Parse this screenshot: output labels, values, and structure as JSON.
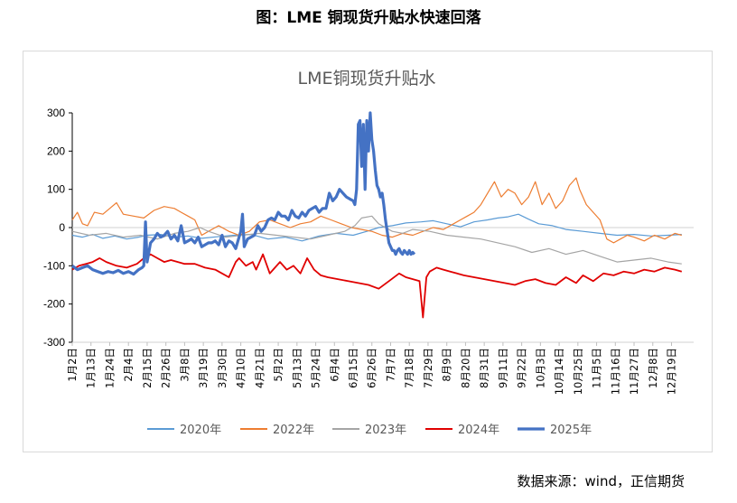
{
  "figure_title": "图：LME 铜现货升贴水快速回落",
  "source": "数据来源：wind，正信期货",
  "chart_data": {
    "type": "line",
    "title": "LME铜现货升贴水",
    "xlabel": "",
    "ylabel": "",
    "ylim": [
      -300,
      300
    ],
    "yticks": [
      -300,
      -200,
      -100,
      0,
      100,
      200,
      300
    ],
    "grid": false,
    "legend_position": "bottom",
    "x_tick_labels": [
      "1月2日",
      "1月13日",
      "1月24日",
      "2月4日",
      "2月15日",
      "2月26日",
      "3月8日",
      "3月19日",
      "3月30日",
      "4月10日",
      "4月21日",
      "5月2日",
      "5月13日",
      "5月24日",
      "6月4日",
      "6月15日",
      "6月26日",
      "7月7日",
      "7月18日",
      "7月29日",
      "8月9日",
      "8月20日",
      "8月31日",
      "9月11日",
      "9月22日",
      "10月3日",
      "10月14日",
      "10月25日",
      "11月5日",
      "11月16日",
      "11月27日",
      "12月8日",
      "12月19日"
    ],
    "x_day_index": [
      0,
      11,
      22,
      33,
      44,
      55,
      66,
      77,
      88,
      99,
      110,
      121,
      132,
      143,
      154,
      165,
      176,
      187,
      198,
      209,
      220,
      231,
      242,
      253,
      264,
      275,
      286,
      297,
      308,
      319,
      330,
      341,
      352
    ],
    "series": [
      {
        "name": "2020年",
        "color": "#5B9BD5",
        "width": 1.2,
        "x": [
          0,
          6,
          12,
          18,
          25,
          32,
          39,
          44,
          52,
          60,
          68,
          76,
          85,
          95,
          105,
          115,
          125,
          135,
          145,
          155,
          165,
          173,
          180,
          188,
          196,
          205,
          212,
          220,
          228,
          236,
          244,
          250,
          256,
          262,
          268,
          274,
          282,
          290,
          300,
          310,
          320,
          330,
          340,
          350,
          358
        ],
        "y": [
          -20,
          -25,
          -18,
          -28,
          -22,
          -30,
          -25,
          -20,
          -18,
          -25,
          -22,
          -28,
          -24,
          -20,
          -18,
          -30,
          -25,
          -35,
          -22,
          -15,
          -20,
          -10,
          0,
          5,
          12,
          15,
          18,
          10,
          2,
          15,
          20,
          25,
          28,
          35,
          22,
          10,
          5,
          -5,
          -10,
          -15,
          -20,
          -18,
          -22,
          -20,
          -18
        ]
      },
      {
        "name": "2022年",
        "color": "#ED7D31",
        "width": 1.2,
        "x": [
          0,
          3,
          6,
          9,
          13,
          18,
          22,
          26,
          30,
          36,
          42,
          48,
          54,
          60,
          64,
          68,
          72,
          76,
          80,
          86,
          92,
          98,
          104,
          110,
          116,
          122,
          128,
          134,
          140,
          146,
          152,
          158,
          164,
          170,
          176,
          182,
          188,
          194,
          200,
          206,
          212,
          218,
          224,
          228,
          232,
          236,
          240,
          244,
          248,
          252,
          256,
          260,
          264,
          268,
          272,
          276,
          280,
          284,
          288,
          292,
          296,
          298,
          302,
          306,
          310,
          314,
          318,
          322,
          326,
          330,
          336,
          342,
          348,
          354,
          358
        ],
        "y": [
          20,
          40,
          10,
          5,
          40,
          35,
          50,
          65,
          35,
          30,
          25,
          45,
          55,
          50,
          40,
          30,
          20,
          -20,
          -10,
          5,
          -10,
          -20,
          -10,
          15,
          20,
          10,
          0,
          10,
          15,
          30,
          20,
          10,
          0,
          -5,
          -10,
          -20,
          -25,
          -15,
          -20,
          -10,
          0,
          -5,
          10,
          20,
          30,
          40,
          60,
          90,
          120,
          80,
          100,
          90,
          60,
          80,
          120,
          60,
          90,
          50,
          70,
          110,
          130,
          100,
          60,
          40,
          20,
          -30,
          -40,
          -30,
          -20,
          -25,
          -35,
          -20,
          -30,
          -15,
          -20
        ]
      },
      {
        "name": "2023年",
        "color": "#A5A5A5",
        "width": 1.2,
        "x": [
          0,
          10,
          20,
          30,
          40,
          50,
          60,
          68,
          75,
          80,
          90,
          100,
          110,
          120,
          130,
          140,
          150,
          160,
          166,
          170,
          176,
          180,
          184,
          188,
          194,
          200,
          210,
          220,
          230,
          240,
          250,
          260,
          270,
          280,
          290,
          300,
          310,
          320,
          330,
          340,
          350,
          358
        ],
        "y": [
          -10,
          -20,
          -15,
          -25,
          -20,
          -30,
          -15,
          -10,
          0,
          -10,
          -25,
          -20,
          -15,
          -20,
          -25,
          -30,
          -20,
          -10,
          5,
          25,
          30,
          10,
          0,
          -10,
          -15,
          -5,
          -10,
          -20,
          -25,
          -30,
          -40,
          -50,
          -65,
          -55,
          -70,
          -60,
          -75,
          -90,
          -85,
          -80,
          -90,
          -95
        ]
      },
      {
        "name": "2024年",
        "color": "#E00000",
        "width": 1.8,
        "x": [
          0,
          4,
          8,
          12,
          16,
          20,
          26,
          32,
          38,
          42,
          44,
          46,
          50,
          54,
          58,
          62,
          66,
          72,
          78,
          84,
          88,
          92,
          96,
          98,
          102,
          106,
          108,
          112,
          116,
          118,
          122,
          126,
          130,
          134,
          138,
          142,
          146,
          150,
          156,
          162,
          168,
          174,
          180,
          186,
          192,
          196,
          200,
          204,
          206,
          208,
          210,
          214,
          218,
          222,
          226,
          230,
          236,
          242,
          248,
          254,
          260,
          266,
          272,
          278,
          284,
          290,
          296,
          300,
          306,
          312,
          318,
          324,
          330,
          336,
          342,
          348,
          354,
          358
        ],
        "y": [
          -110,
          -100,
          -95,
          -90,
          -80,
          -90,
          -100,
          -105,
          -95,
          -80,
          -75,
          -70,
          -80,
          -90,
          -85,
          -90,
          -95,
          -95,
          -105,
          -110,
          -120,
          -130,
          -90,
          -80,
          -100,
          -90,
          -110,
          -70,
          -120,
          -110,
          -90,
          -110,
          -100,
          -120,
          -80,
          -110,
          -125,
          -130,
          -135,
          -140,
          -145,
          -150,
          -160,
          -140,
          -120,
          -130,
          -135,
          -140,
          -235,
          -130,
          -115,
          -105,
          -110,
          -115,
          -120,
          -125,
          -130,
          -135,
          -140,
          -145,
          -150,
          -140,
          -135,
          -145,
          -150,
          -130,
          -145,
          -125,
          -140,
          -120,
          -125,
          -115,
          -120,
          -110,
          -115,
          -105,
          -110,
          -115
        ]
      },
      {
        "name": "2025年",
        "color": "#4472C4",
        "width": 3.2,
        "x": [
          0,
          3,
          6,
          9,
          12,
          15,
          18,
          21,
          24,
          27,
          30,
          33,
          36,
          39,
          41,
          42,
          43,
          44,
          46,
          48,
          50,
          52,
          54,
          56,
          58,
          60,
          62,
          64,
          66,
          68,
          70,
          72,
          74,
          76,
          78,
          80,
          82,
          84,
          86,
          88,
          90,
          92,
          94,
          96,
          98,
          99,
          100,
          101,
          103,
          105,
          107,
          109,
          111,
          113,
          115,
          117,
          119,
          121,
          123,
          125,
          127,
          129,
          131,
          133,
          135,
          137,
          139,
          141,
          143,
          145,
          147,
          149,
          151,
          153,
          155,
          157,
          159,
          161,
          163,
          165,
          166,
          167,
          168,
          169,
          170,
          171,
          172,
          173,
          174,
          175,
          176,
          177,
          178,
          179,
          180,
          181,
          182,
          183,
          184,
          185,
          186,
          187,
          188,
          189,
          190,
          191,
          192,
          193,
          194,
          195,
          196,
          197,
          198,
          199,
          200,
          201
        ],
        "y": [
          -100,
          -110,
          -105,
          -100,
          -110,
          -115,
          -120,
          -115,
          -118,
          -112,
          -120,
          -115,
          -122,
          -110,
          -105,
          -100,
          15,
          -90,
          -40,
          -30,
          -15,
          -25,
          -20,
          -10,
          -30,
          -20,
          -35,
          5,
          -40,
          -35,
          -30,
          -40,
          -25,
          -50,
          -45,
          -40,
          -40,
          -35,
          -45,
          -20,
          -50,
          -35,
          -40,
          -55,
          -25,
          -10,
          35,
          -50,
          -30,
          -25,
          -20,
          5,
          -10,
          0,
          20,
          25,
          20,
          40,
          30,
          30,
          20,
          45,
          30,
          25,
          40,
          30,
          45,
          50,
          55,
          40,
          50,
          50,
          90,
          70,
          80,
          100,
          90,
          80,
          75,
          70,
          60,
          100,
          270,
          280,
          160,
          270,
          100,
          280,
          200,
          300,
          230,
          200,
          150,
          110,
          100,
          80,
          90,
          60,
          20,
          -10,
          -40,
          -50,
          -60,
          -60,
          -70,
          -60,
          -55,
          -65,
          -70,
          -60,
          -65,
          -70,
          -60,
          -70,
          -65,
          -70
        ]
      }
    ]
  }
}
